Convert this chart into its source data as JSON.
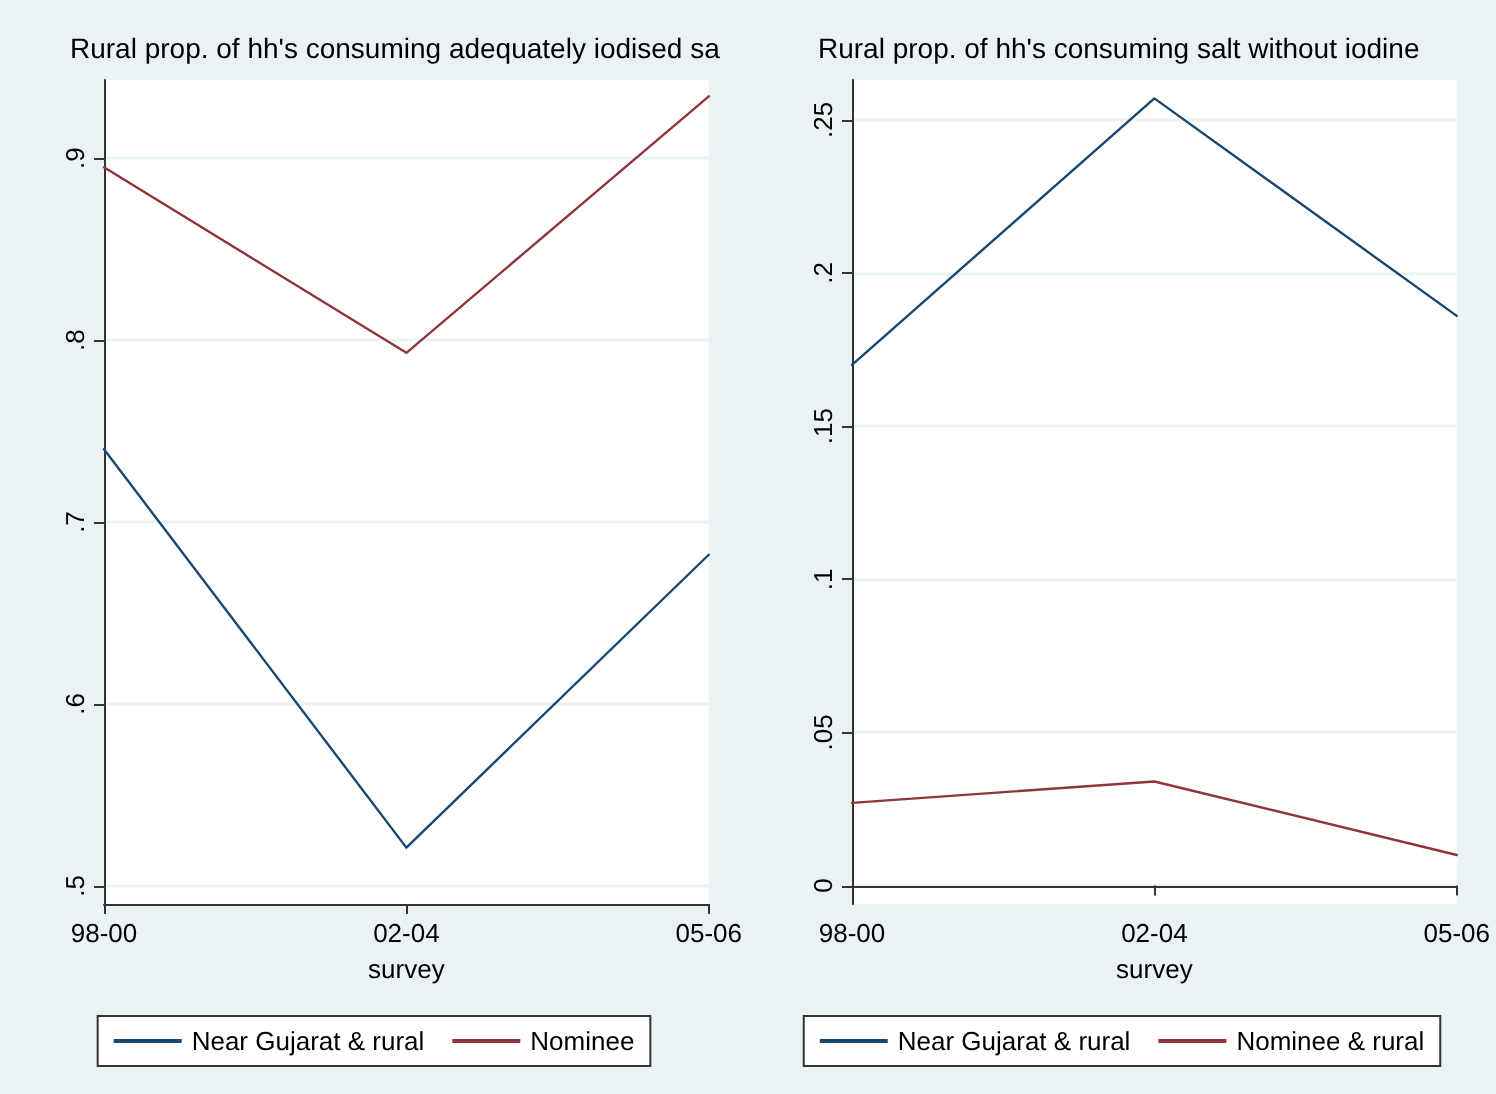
{
  "chart_data": [
    {
      "type": "line",
      "title": "Rural prop. of hh's consuming adequately iodised sa",
      "xlabel": "survey",
      "categories": [
        "98-00",
        "02-04",
        "05-06"
      ],
      "series": [
        {
          "name": "Near Gujarat & rural",
          "color": "#1a476f",
          "values": [
            0.74,
            0.521,
            0.682
          ]
        },
        {
          "name": "Nominee",
          "color": "#90353b",
          "values": [
            0.895,
            0.793,
            0.934
          ]
        }
      ],
      "ylim": [
        0.49,
        0.943
      ],
      "yticks": [
        {
          "value": 0.5,
          "label": ".5"
        },
        {
          "value": 0.6,
          "label": ".6"
        },
        {
          "value": 0.7,
          "label": ".7"
        },
        {
          "value": 0.8,
          "label": ".8"
        },
        {
          "value": 0.9,
          "label": ".9"
        }
      ],
      "grid": "y",
      "legend": "bottom",
      "marker": "none",
      "line_style": "solid"
    },
    {
      "type": "line",
      "title": "Rural prop. of hh's consuming salt without iodine",
      "xlabel": "survey",
      "categories": [
        "98-00",
        "02-04",
        "05-06"
      ],
      "series": [
        {
          "name": "Near Gujarat & rural",
          "color": "#1a476f",
          "values": [
            0.17,
            0.257,
            0.186
          ]
        },
        {
          "name": "Nominee & rural",
          "color": "#90353b",
          "values": [
            0.027,
            0.034,
            0.01
          ]
        }
      ],
      "ylim": [
        -0.006,
        0.263
      ],
      "yticks": [
        0,
        {
          "value": 0.05,
          "label": ".05"
        },
        {
          "value": 0.1,
          "label": ".1"
        },
        {
          "value": 0.15,
          "label": ".15"
        },
        {
          "value": 0.2,
          "label": ".2"
        },
        {
          "value": 0.25,
          "label": ".25"
        }
      ],
      "grid": "y",
      "legend": "bottom",
      "marker": "none",
      "line_style": "solid"
    }
  ]
}
